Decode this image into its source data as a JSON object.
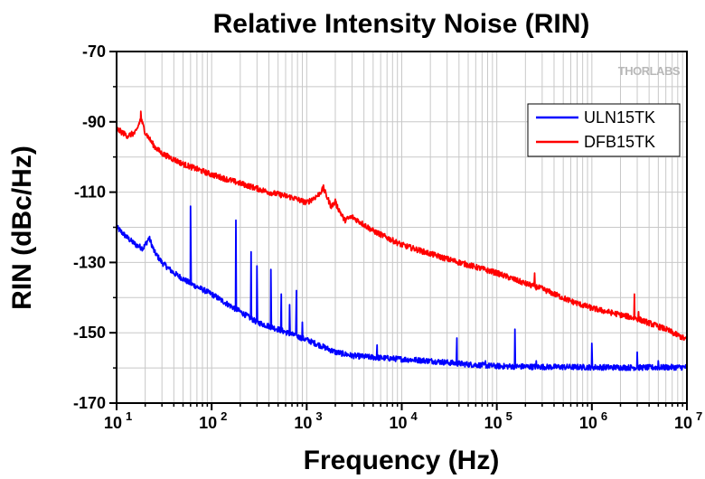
{
  "chart_data": {
    "type": "line",
    "title": "Relative Intensity Noise (RIN)",
    "xlabel": "Frequency (Hz)",
    "ylabel": "RIN (dBc/Hz)",
    "x_scale": "log",
    "xlim": [
      10,
      10000000
    ],
    "ylim": [
      -170,
      -70
    ],
    "grid": true,
    "legend_position": "top-right",
    "watermark": "THORLABS",
    "x_ticks": [
      {
        "base": "10",
        "exp": "1",
        "value": 10
      },
      {
        "base": "10",
        "exp": "2",
        "value": 100
      },
      {
        "base": "10",
        "exp": "3",
        "value": 1000
      },
      {
        "base": "10",
        "exp": "4",
        "value": 10000
      },
      {
        "base": "10",
        "exp": "5",
        "value": 100000
      },
      {
        "base": "10",
        "exp": "6",
        "value": 1000000
      },
      {
        "base": "10",
        "exp": "7",
        "value": 10000000
      }
    ],
    "y_ticks": [
      -70,
      -90,
      -110,
      -130,
      -150,
      -170
    ],
    "series": [
      {
        "name": "ULN15TK",
        "color": "#0000ff",
        "points": [
          [
            10,
            -120
          ],
          [
            13,
            -123
          ],
          [
            16,
            -125
          ],
          [
            19,
            -126
          ],
          [
            22,
            -123
          ],
          [
            25,
            -127
          ],
          [
            30,
            -130
          ],
          [
            40,
            -133
          ],
          [
            60,
            -136
          ],
          [
            100,
            -139
          ],
          [
            150,
            -142
          ],
          [
            200,
            -144
          ],
          [
            300,
            -147
          ],
          [
            500,
            -149
          ],
          [
            700,
            -150.5
          ],
          [
            1000,
            -152
          ],
          [
            1500,
            -154
          ],
          [
            2000,
            -155.5
          ],
          [
            3000,
            -156.5
          ],
          [
            5000,
            -157
          ],
          [
            10000,
            -157.5
          ],
          [
            20000,
            -158
          ],
          [
            50000,
            -159
          ],
          [
            100000,
            -159.5
          ],
          [
            300000,
            -159.7
          ],
          [
            1000000,
            -159.8
          ],
          [
            3000000,
            -159.9
          ],
          [
            10000000,
            -159.8
          ]
        ],
        "spikes": [
          [
            22,
            -123
          ],
          [
            60,
            -114
          ],
          [
            180,
            -118
          ],
          [
            260,
            -127
          ],
          [
            300,
            -131
          ],
          [
            420,
            -132
          ],
          [
            540,
            -139
          ],
          [
            660,
            -142
          ],
          [
            780,
            -138
          ],
          [
            900,
            -147
          ],
          [
            5500,
            -153.5
          ],
          [
            38000,
            -151.5
          ],
          [
            76000,
            -158
          ],
          [
            155000,
            -149
          ],
          [
            260000,
            -158
          ],
          [
            1000000,
            -153
          ],
          [
            3000000,
            -155.5
          ],
          [
            5000000,
            -158
          ]
        ]
      },
      {
        "name": "DFB15TK",
        "color": "#ff0000",
        "points": [
          [
            10,
            -92
          ],
          [
            13,
            -94
          ],
          [
            16,
            -93
          ],
          [
            18,
            -89
          ],
          [
            20,
            -93
          ],
          [
            25,
            -97
          ],
          [
            30,
            -99
          ],
          [
            50,
            -102
          ],
          [
            100,
            -105
          ],
          [
            200,
            -107.5
          ],
          [
            400,
            -110
          ],
          [
            700,
            -111.5
          ],
          [
            1000,
            -113
          ],
          [
            1300,
            -111
          ],
          [
            1500,
            -109
          ],
          [
            1800,
            -114
          ],
          [
            2000,
            -113
          ],
          [
            2500,
            -118
          ],
          [
            3000,
            -117
          ],
          [
            5000,
            -121
          ],
          [
            10000,
            -125
          ],
          [
            30000,
            -129
          ],
          [
            100000,
            -133
          ],
          [
            200000,
            -136
          ],
          [
            300000,
            -137.5
          ],
          [
            600000,
            -141
          ],
          [
            1000000,
            -143
          ],
          [
            3000000,
            -146
          ],
          [
            6000000,
            -149
          ],
          [
            10000000,
            -152
          ]
        ],
        "spikes": [
          [
            18,
            -87
          ],
          [
            1500,
            -108
          ],
          [
            2000,
            -112
          ],
          [
            250000,
            -133
          ],
          [
            2800000,
            -139
          ],
          [
            3100000,
            -144
          ]
        ]
      }
    ]
  }
}
